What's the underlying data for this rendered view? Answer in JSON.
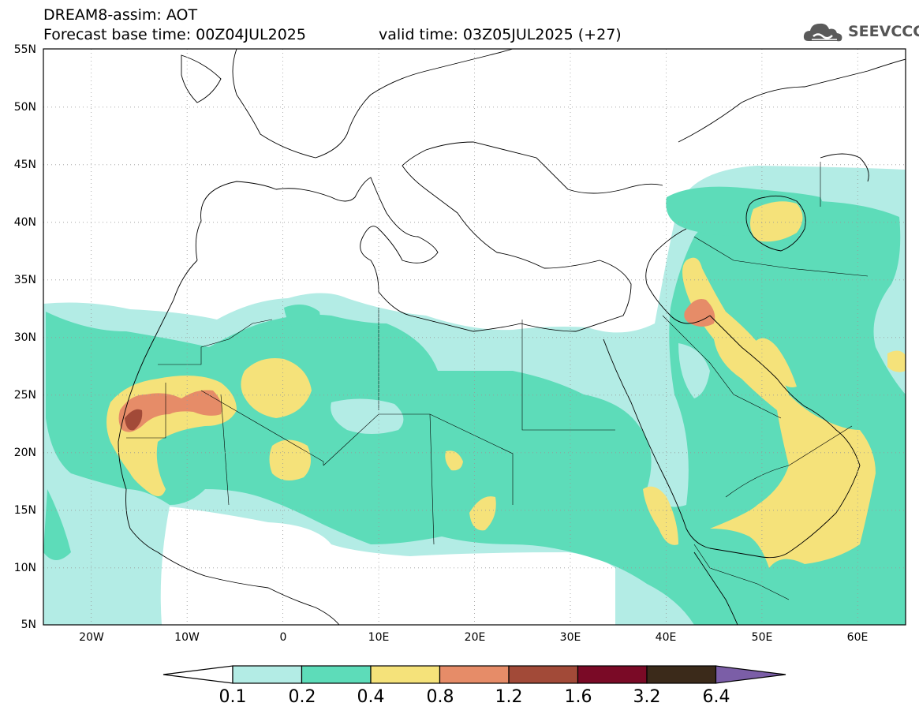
{
  "header": {
    "title": "DREAM8-assim: AOT",
    "base_time": "Forecast base time: 00Z04JUL2025",
    "valid_time": "valid time: 03Z05JUL2025 (+27)",
    "logo_text": "SEEVCCC"
  },
  "map": {
    "projection": "equirectangular",
    "lon_range": [
      -25,
      65
    ],
    "lat_range": [
      5,
      55
    ],
    "gridlines": "dotted",
    "lat_labels": [
      "55N",
      "50N",
      "45N",
      "40N",
      "35N",
      "30N",
      "25N",
      "20N",
      "15N",
      "10N",
      "5N"
    ],
    "lon_labels": [
      "20W",
      "10W",
      "0",
      "10E",
      "20E",
      "30E",
      "40E",
      "50E",
      "60E"
    ],
    "field": "Aerosol Optical Thickness"
  },
  "colorbar": {
    "levels": [
      "0.1",
      "0.2",
      "0.4",
      "0.8",
      "1.2",
      "1.6",
      "3.2",
      "6.4"
    ],
    "colors": [
      "#b3ece5",
      "#5ddcb9",
      "#f5e27a",
      "#e68c68",
      "#a24a38",
      "#7a0a26",
      "#3b2a1a",
      "#7b5ea7"
    ],
    "under_color": "#ffffff"
  }
}
